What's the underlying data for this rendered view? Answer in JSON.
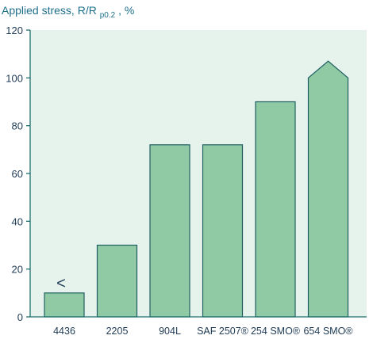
{
  "chart_data": {
    "type": "bar",
    "title": {
      "prefix": "Applied stress, R/R",
      "subscript": "p0.2",
      "suffix": ", %"
    },
    "xlabel": "",
    "ylabel": "",
    "categories": [
      "4436",
      "2205",
      "904L",
      "SAF 2507®",
      "254 SMO®",
      "654 SMO®"
    ],
    "values": [
      10,
      30,
      72,
      72,
      90,
      100
    ],
    "ylim": [
      0,
      120
    ],
    "yticks": [
      0,
      20,
      40,
      60,
      80,
      100,
      120
    ],
    "grid": false,
    "legend": "none",
    "annotations": [
      {
        "category": "4436",
        "text": "<"
      }
    ],
    "notes": [
      {
        "category": "654 SMO®",
        "shape": "pointed top",
        "peak_value": 107
      }
    ],
    "colors": {
      "plot_background": "#e6f2ec",
      "bar_fill": "#8fcaa5",
      "bar_stroke": "#1f5f62",
      "axis": "#1f6f70",
      "text": "#1f3b55",
      "title": "#1f6f8b"
    }
  }
}
